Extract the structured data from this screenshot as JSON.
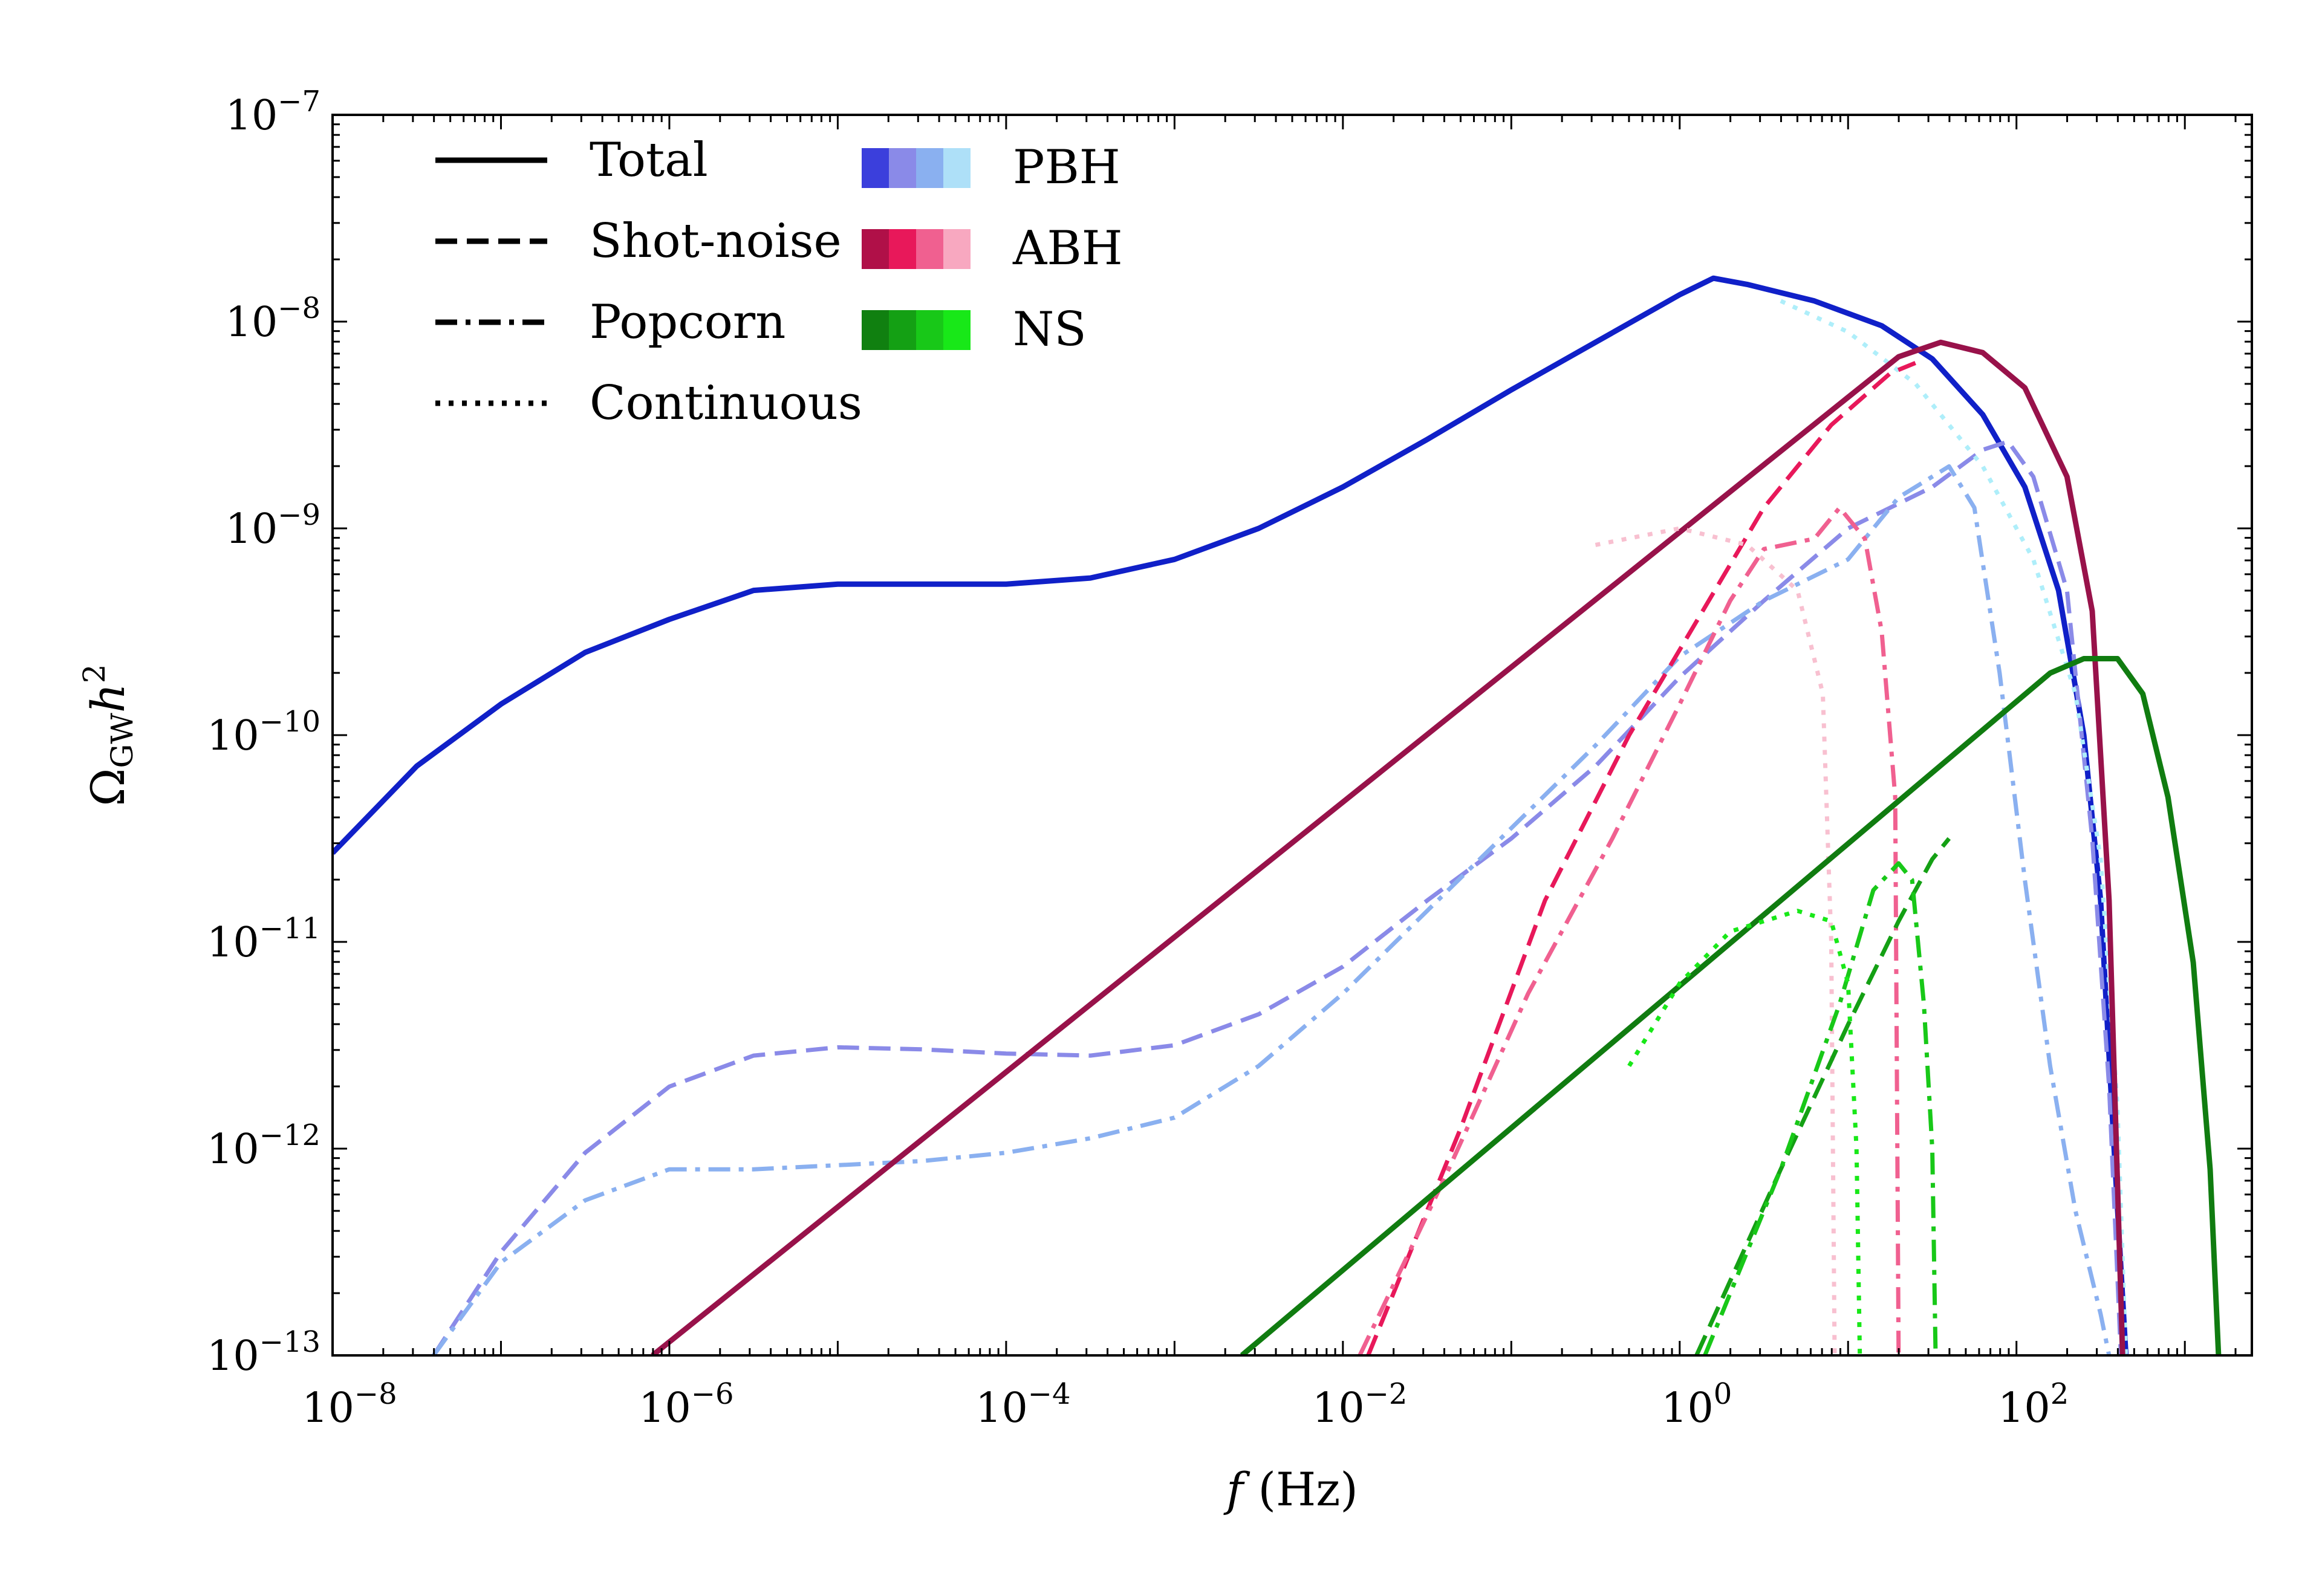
{
  "chart_data": {
    "type": "line",
    "xscale": "log",
    "yscale": "log",
    "xlim": [
      1e-08,
      2500
    ],
    "ylim": [
      1e-13,
      1e-07
    ],
    "xlabel": "f (Hz)",
    "ylabel": "Ω_GW h²",
    "grid": false,
    "x_ticks": [
      {
        "value": 1e-08,
        "base": "10",
        "exp": "−8"
      },
      {
        "value": 1e-06,
        "base": "10",
        "exp": "−6"
      },
      {
        "value": 0.0001,
        "base": "10",
        "exp": "−4"
      },
      {
        "value": 0.01,
        "base": "10",
        "exp": "−2"
      },
      {
        "value": 1,
        "base": "10",
        "exp": "0"
      },
      {
        "value": 100,
        "base": "10",
        "exp": "2"
      }
    ],
    "y_ticks": [
      {
        "value": 1e-13,
        "base": "10",
        "exp": "−13"
      },
      {
        "value": 1e-12,
        "base": "10",
        "exp": "−12"
      },
      {
        "value": 1e-11,
        "base": "10",
        "exp": "−11"
      },
      {
        "value": 1e-10,
        "base": "10",
        "exp": "−10"
      },
      {
        "value": 1e-09,
        "base": "10",
        "exp": "−9"
      },
      {
        "value": 1e-08,
        "base": "10",
        "exp": "−8"
      },
      {
        "value": 1e-07,
        "base": "10",
        "exp": "−7"
      }
    ],
    "legend": {
      "position": "top-left",
      "styles": [
        {
          "label": "Total",
          "dash": "solid"
        },
        {
          "label": "Shot-noise",
          "dash": "dashed"
        },
        {
          "label": "Popcorn",
          "dash": "dashdot"
        },
        {
          "label": "Continuous",
          "dash": "dotted"
        }
      ],
      "sources": [
        {
          "label": "PBH",
          "colors": [
            "#3b3fdc",
            "#8a8ae8",
            "#8ab0f0",
            "#aee0f8"
          ]
        },
        {
          "label": "ABH",
          "colors": [
            "#b01048",
            "#e8185a",
            "#f06090",
            "#f8a8c0"
          ]
        },
        {
          "label": "NS",
          "colors": [
            "#108010",
            "#14a014",
            "#18c818",
            "#18e818"
          ]
        }
      ]
    },
    "series": [
      {
        "name": "PBH Total",
        "color": "#1020c8",
        "dash": "solid",
        "width": 9,
        "points": [
          [
            -8,
            -10.57
          ],
          [
            -7.5,
            -10.15
          ],
          [
            -7,
            -9.85
          ],
          [
            -6.5,
            -9.6
          ],
          [
            -6,
            -9.44
          ],
          [
            -5.5,
            -9.3
          ],
          [
            -5,
            -9.27
          ],
          [
            -4.5,
            -9.27
          ],
          [
            -4,
            -9.27
          ],
          [
            -3.5,
            -9.24
          ],
          [
            -3,
            -9.15
          ],
          [
            -2.5,
            -9
          ],
          [
            -2,
            -8.8
          ],
          [
            -1.5,
            -8.57
          ],
          [
            -1,
            -8.33
          ],
          [
            -0.5,
            -8.1
          ],
          [
            0,
            -7.87
          ],
          [
            0.2,
            -7.79
          ],
          [
            0.4,
            -7.82
          ],
          [
            0.8,
            -7.9
          ],
          [
            1.2,
            -8.02
          ],
          [
            1.5,
            -8.18
          ],
          [
            1.8,
            -8.45
          ],
          [
            2.05,
            -8.8
          ],
          [
            2.25,
            -9.3
          ],
          [
            2.4,
            -10
          ],
          [
            2.5,
            -10.8
          ],
          [
            2.58,
            -12
          ],
          [
            2.65,
            -13
          ]
        ]
      },
      {
        "name": "PBH Shot-noise",
        "color": "#8a8ae8",
        "dash": "dashed",
        "width": 7,
        "points": [
          [
            -7.4,
            -13
          ],
          [
            -7,
            -12.5
          ],
          [
            -6.5,
            -12.02
          ],
          [
            -6,
            -11.7
          ],
          [
            -5.5,
            -11.55
          ],
          [
            -5,
            -11.51
          ],
          [
            -4.5,
            -11.52
          ],
          [
            -4,
            -11.54
          ],
          [
            -3.5,
            -11.55
          ],
          [
            -3,
            -11.5
          ],
          [
            -2.5,
            -11.35
          ],
          [
            -2,
            -11.12
          ],
          [
            -1.5,
            -10.8
          ],
          [
            -1,
            -10.5
          ],
          [
            -0.5,
            -10.15
          ],
          [
            0,
            -9.72
          ],
          [
            0.5,
            -9.35
          ],
          [
            1,
            -9.0
          ],
          [
            1.5,
            -8.8
          ],
          [
            1.8,
            -8.62
          ],
          [
            1.95,
            -8.58
          ],
          [
            2.1,
            -8.75
          ],
          [
            2.3,
            -9.3
          ],
          [
            2.45,
            -10.5
          ],
          [
            2.55,
            -11.7
          ],
          [
            2.62,
            -13
          ]
        ]
      },
      {
        "name": "PBH Popcorn",
        "color": "#8ab0f0",
        "dash": "dashdot",
        "width": 7,
        "points": [
          [
            -7.4,
            -13
          ],
          [
            -7,
            -12.55
          ],
          [
            -6.5,
            -12.25
          ],
          [
            -6,
            -12.1
          ],
          [
            -5.5,
            -12.1
          ],
          [
            -5,
            -12.08
          ],
          [
            -4.5,
            -12.06
          ],
          [
            -4,
            -12.02
          ],
          [
            -3.5,
            -11.95
          ],
          [
            -3,
            -11.85
          ],
          [
            -2.5,
            -11.6
          ],
          [
            -2,
            -11.25
          ],
          [
            -1.5,
            -10.85
          ],
          [
            -1,
            -10.45
          ],
          [
            -0.5,
            -10.05
          ],
          [
            0,
            -9.62
          ],
          [
            0.5,
            -9.35
          ],
          [
            1,
            -9.15
          ],
          [
            1.3,
            -8.85
          ],
          [
            1.6,
            -8.7
          ],
          [
            1.75,
            -8.9
          ],
          [
            1.9,
            -9.7
          ],
          [
            2.05,
            -10.7
          ],
          [
            2.2,
            -11.6
          ],
          [
            2.35,
            -12.3
          ],
          [
            2.5,
            -12.8
          ],
          [
            2.55,
            -13
          ]
        ]
      },
      {
        "name": "PBH Continuous",
        "color": "#aeeefa",
        "dash": "dotted",
        "width": 7,
        "points": [
          [
            0.6,
            -7.9
          ],
          [
            1,
            -8.05
          ],
          [
            1.4,
            -8.3
          ],
          [
            1.8,
            -8.7
          ],
          [
            2.1,
            -9.15
          ],
          [
            2.35,
            -9.8
          ],
          [
            2.5,
            -10.6
          ],
          [
            2.6,
            -11.8
          ],
          [
            2.65,
            -13
          ]
        ]
      },
      {
        "name": "ABH Total",
        "color": "#98124a",
        "dash": "solid",
        "width": 9,
        "points": [
          [
            -6.1,
            -13
          ],
          [
            1.3,
            -8.17
          ],
          [
            1.55,
            -8.1
          ],
          [
            1.8,
            -8.15
          ],
          [
            2.05,
            -8.32
          ],
          [
            2.3,
            -8.75
          ],
          [
            2.45,
            -9.4
          ],
          [
            2.55,
            -10.8
          ],
          [
            2.63,
            -13
          ]
        ]
      },
      {
        "name": "ABH Shot-noise",
        "color": "#e8185a",
        "dash": "dashed",
        "width": 7,
        "points": [
          [
            -1.85,
            -13
          ],
          [
            -1.3,
            -11.9
          ],
          [
            -0.8,
            -10.8
          ],
          [
            -0.3,
            -10
          ],
          [
            0.1,
            -9.45
          ],
          [
            0.5,
            -8.9
          ],
          [
            0.9,
            -8.5
          ],
          [
            1.25,
            -8.25
          ],
          [
            1.4,
            -8.2
          ]
        ]
      },
      {
        "name": "ABH Popcorn",
        "color": "#f06090",
        "dash": "dashdot",
        "width": 7,
        "points": [
          [
            -1.9,
            -13
          ],
          [
            -1.4,
            -12.15
          ],
          [
            -0.9,
            -11.25
          ],
          [
            -0.4,
            -10.5
          ],
          [
            0,
            -9.85
          ],
          [
            0.3,
            -9.35
          ],
          [
            0.5,
            -9.1
          ],
          [
            0.8,
            -9.05
          ],
          [
            0.95,
            -8.9
          ],
          [
            1.1,
            -9.05
          ],
          [
            1.2,
            -9.5
          ],
          [
            1.28,
            -10.3
          ],
          [
            1.3,
            -13
          ]
        ]
      },
      {
        "name": "ABH Continuous",
        "color": "#f8c0d0",
        "dash": "dotted",
        "width": 7,
        "points": [
          [
            -0.5,
            -9.08
          ],
          [
            0,
            -9.0
          ],
          [
            0.4,
            -9.08
          ],
          [
            0.7,
            -9.3
          ],
          [
            0.85,
            -9.8
          ],
          [
            0.9,
            -11
          ],
          [
            0.92,
            -13
          ]
        ]
      },
      {
        "name": "NS Total",
        "color": "#107c10",
        "dash": "solid",
        "width": 9,
        "points": [
          [
            -2.6,
            -13
          ],
          [
            2.2,
            -9.7
          ],
          [
            2.4,
            -9.63
          ],
          [
            2.6,
            -9.63
          ],
          [
            2.75,
            -9.8
          ],
          [
            2.9,
            -10.3
          ],
          [
            3.05,
            -11.1
          ],
          [
            3.15,
            -12.1
          ],
          [
            3.2,
            -13
          ]
        ]
      },
      {
        "name": "NS Shot-noise",
        "color": "#14a014",
        "dash": "dashed",
        "width": 7,
        "points": [
          [
            0.1,
            -13
          ],
          [
            0.6,
            -12.1
          ],
          [
            1,
            -11.4
          ],
          [
            1.3,
            -10.9
          ],
          [
            1.5,
            -10.6
          ],
          [
            1.6,
            -10.5
          ]
        ]
      },
      {
        "name": "NS Popcorn",
        "color": "#18c818",
        "dash": "dashdot",
        "width": 7,
        "points": [
          [
            0.15,
            -13
          ],
          [
            0.6,
            -12.1
          ],
          [
            0.95,
            -11.3
          ],
          [
            1.15,
            -10.75
          ],
          [
            1.3,
            -10.62
          ],
          [
            1.38,
            -10.7
          ],
          [
            1.45,
            -11.3
          ],
          [
            1.5,
            -12
          ],
          [
            1.52,
            -13
          ]
        ]
      },
      {
        "name": "NS Continuous",
        "color": "#18e818",
        "dash": "dotted",
        "width": 7,
        "points": [
          [
            -0.3,
            -11.6
          ],
          [
            0,
            -11.2
          ],
          [
            0.3,
            -10.95
          ],
          [
            0.7,
            -10.85
          ],
          [
            0.9,
            -10.9
          ],
          [
            1.0,
            -11.2
          ],
          [
            1.05,
            -12.0
          ],
          [
            1.07,
            -13
          ]
        ]
      }
    ]
  }
}
